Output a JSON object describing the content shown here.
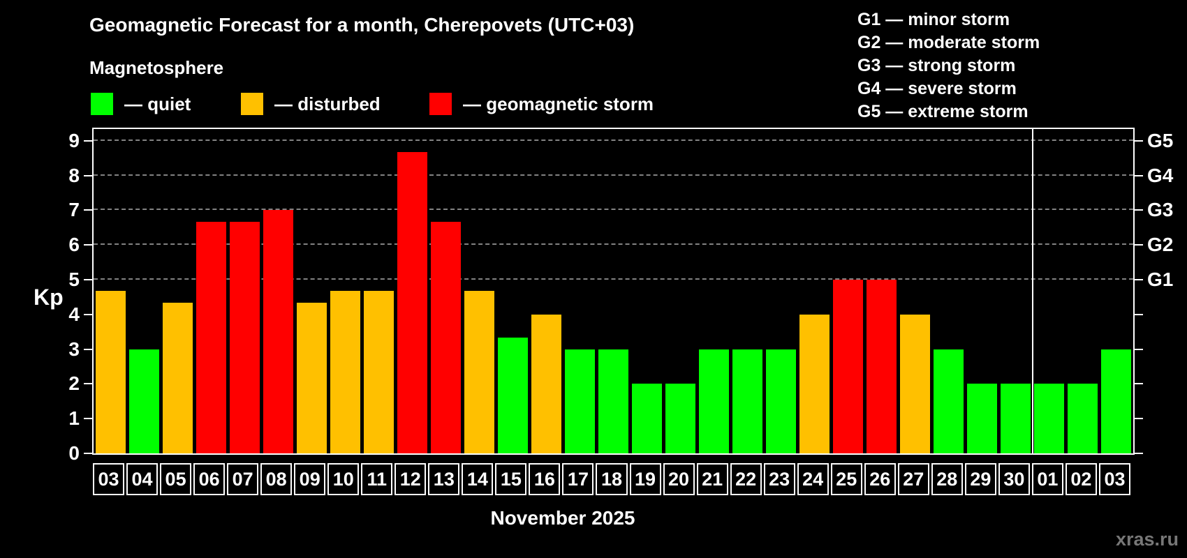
{
  "header": {
    "title": "Geomagnetic Forecast for a month, Cherepovets (UTC+03)",
    "subtitle": "Magnetosphere"
  },
  "legend": {
    "items": [
      {
        "status": "quiet",
        "label": "— quiet"
      },
      {
        "status": "disturbed",
        "label": "— disturbed"
      },
      {
        "status": "storm",
        "label": "— geomagnetic storm"
      }
    ]
  },
  "storm_scale": {
    "lines": [
      "G1 — minor storm",
      "G2 — moderate storm",
      "G3 — strong storm",
      "G4 — severe storm",
      "G5 — extreme storm"
    ]
  },
  "axes": {
    "y_label": "Kp",
    "y_ticks": [
      0,
      1,
      2,
      3,
      4,
      5,
      6,
      7,
      8,
      9
    ],
    "right_labels": [
      {
        "kp": 5,
        "label": "G1"
      },
      {
        "kp": 6,
        "label": "G2"
      },
      {
        "kp": 7,
        "label": "G3"
      },
      {
        "kp": 8,
        "label": "G4"
      },
      {
        "kp": 9,
        "label": "G5"
      }
    ],
    "x_label": "November 2025"
  },
  "watermark": "xras.ru",
  "colors": {
    "quiet": "#00ff00",
    "disturbed": "#ffc000",
    "storm": "#ff0000",
    "grid": "#9a9a9a",
    "frame": "#ffffff",
    "watermark": "#777777"
  },
  "chart_data": {
    "type": "bar",
    "title": "Geomagnetic Forecast for a month, Cherepovets (UTC+03)",
    "ylabel": "Kp",
    "xlabel": "November 2025",
    "ylim": [
      0,
      9.4
    ],
    "gridlines_at": [
      5,
      6,
      7,
      8,
      9
    ],
    "legend_position": "top-left",
    "month_separator_after_index": 27,
    "categories": [
      "03",
      "04",
      "05",
      "06",
      "07",
      "08",
      "09",
      "10",
      "11",
      "12",
      "13",
      "14",
      "15",
      "16",
      "17",
      "18",
      "19",
      "20",
      "21",
      "22",
      "23",
      "24",
      "25",
      "26",
      "27",
      "28",
      "29",
      "30",
      "01",
      "02",
      "03"
    ],
    "values": [
      4.67,
      3,
      4.33,
      6.67,
      6.67,
      7,
      4.33,
      4.67,
      4.67,
      8.67,
      6.67,
      4.67,
      3.33,
      4,
      3,
      3,
      2,
      2,
      3,
      3,
      3,
      4,
      5,
      5,
      4,
      3,
      2,
      2,
      2,
      2,
      3
    ],
    "statuses": [
      "disturbed",
      "quiet",
      "disturbed",
      "storm",
      "storm",
      "storm",
      "disturbed",
      "disturbed",
      "disturbed",
      "storm",
      "storm",
      "disturbed",
      "quiet",
      "disturbed",
      "quiet",
      "quiet",
      "quiet",
      "quiet",
      "quiet",
      "quiet",
      "quiet",
      "disturbed",
      "storm",
      "storm",
      "disturbed",
      "quiet",
      "quiet",
      "quiet",
      "quiet",
      "quiet",
      "quiet"
    ]
  }
}
